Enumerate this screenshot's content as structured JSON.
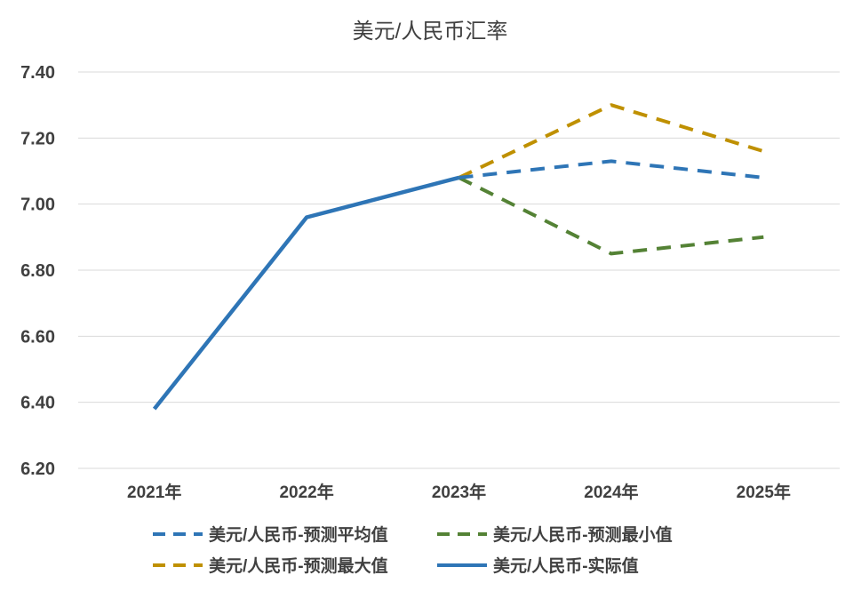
{
  "chart_data": {
    "type": "line",
    "title": "美元/人民币汇率",
    "categories": [
      "2021年",
      "2022年",
      "2023年",
      "2024年",
      "2025年"
    ],
    "y_ticks": [
      "6.20",
      "6.40",
      "6.60",
      "6.80",
      "7.00",
      "7.20",
      "7.40"
    ],
    "ylim": [
      6.2,
      7.4
    ],
    "grid": true,
    "legend_position": "bottom",
    "series": [
      {
        "name": "美元/人民币-预测平均值",
        "values": [
          null,
          null,
          7.08,
          7.13,
          7.08
        ],
        "color": "#2e75b6",
        "dashed": true
      },
      {
        "name": "美元/人民币-预测最小值",
        "values": [
          null,
          null,
          7.08,
          6.85,
          6.9
        ],
        "color": "#548235",
        "dashed": true
      },
      {
        "name": "美元/人民币-预测最大值",
        "values": [
          null,
          null,
          7.08,
          7.3,
          7.16
        ],
        "color": "#bf9000",
        "dashed": true
      },
      {
        "name": "美元/人民币-实际值",
        "values": [
          6.38,
          6.96,
          7.08,
          null,
          null
        ],
        "color": "#2e75b6",
        "dashed": false
      }
    ]
  }
}
